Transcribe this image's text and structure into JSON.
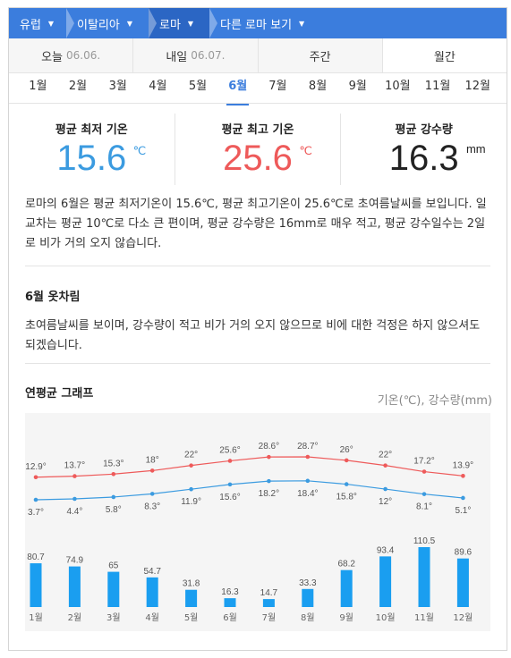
{
  "breadcrumb": [
    {
      "label": "유럽"
    },
    {
      "label": "이탈리아"
    },
    {
      "label": "로마"
    },
    {
      "label": "다른 로마 보기"
    }
  ],
  "tabs": {
    "today": {
      "label": "오늘",
      "date": "06.06."
    },
    "tomorrow": {
      "label": "내일",
      "date": "06.07."
    },
    "weekly": {
      "label": "주간"
    },
    "monthly": {
      "label": "월간"
    }
  },
  "months": [
    "1월",
    "2월",
    "3월",
    "4월",
    "5월",
    "6월",
    "7월",
    "8월",
    "9월",
    "10월",
    "11월",
    "12월"
  ],
  "selected_month": "6월",
  "stats": {
    "min": {
      "label": "평균 최저 기온",
      "value": "15.6",
      "unit": "℃"
    },
    "max": {
      "label": "평균 최고 기온",
      "value": "25.6",
      "unit": "℃"
    },
    "rain": {
      "label": "평균 강수량",
      "value": "16.3",
      "unit": "mm"
    }
  },
  "description": "로마의 6월은 평균 최저기온이 15.6℃, 평균 최고기온이 25.6℃로 초여름날씨를 보입니다. 일교차는 평균 10℃로 다소 큰 편이며, 평균 강수량은 16mm로 매우 적고, 평균 강수일수는 2일로 비가 거의 오지 않습니다.",
  "clothing": {
    "title": "6월 옷차림",
    "text": "초여름날씨를 보이며, 강수량이 적고 비가 거의 오지 않으므로 비에 대한 걱정은 하지 않으셔도 되겠습니다."
  },
  "graph": {
    "title": "연평균 그래프",
    "legend": "기온(℃), 강수량(mm)"
  },
  "colors": {
    "accent": "#3b7ddd",
    "max_line": "#ee5a5a",
    "min_line": "#3b9be0",
    "bar": "#1a9ef0"
  },
  "chart_data": {
    "type": "bar",
    "categories": [
      "1월",
      "2월",
      "3월",
      "4월",
      "5월",
      "6월",
      "7월",
      "8월",
      "9월",
      "10월",
      "11월",
      "12월"
    ],
    "series": [
      {
        "values": [
          12.9,
          13.7,
          15.3,
          18,
          22,
          25.6,
          28.6,
          28.7,
          26,
          22,
          17.2,
          13.9
        ]
      },
      {
        "values": [
          3.7,
          4.4,
          5.8,
          8.3,
          11.9,
          15.6,
          18.2,
          18.4,
          15.8,
          12,
          8.1,
          5.1
        ]
      },
      {
        "values": [
          80.7,
          74.9,
          65,
          54.7,
          31.8,
          16.3,
          14.7,
          33.3,
          68.2,
          93.4,
          110.5,
          89.6
        ]
      }
    ],
    "max_labels": [
      "12.9°",
      "13.7°",
      "15.3°",
      "18°",
      "22°",
      "25.6°",
      "28.6°",
      "28.7°",
      "26°",
      "22°",
      "17.2°",
      "13.9°"
    ],
    "min_labels": [
      "3.7°",
      "4.4°",
      "5.8°",
      "8.3°",
      "11.9°",
      "15.6°",
      "18.2°",
      "18.4°",
      "15.8°",
      "12°",
      "8.1°",
      "5.1°"
    ],
    "rain_labels": [
      "80.7",
      "74.9",
      "65",
      "54.7",
      "31.8",
      "16.3",
      "14.7",
      "33.3",
      "68.2",
      "93.4",
      "110.5",
      "89.6"
    ]
  }
}
